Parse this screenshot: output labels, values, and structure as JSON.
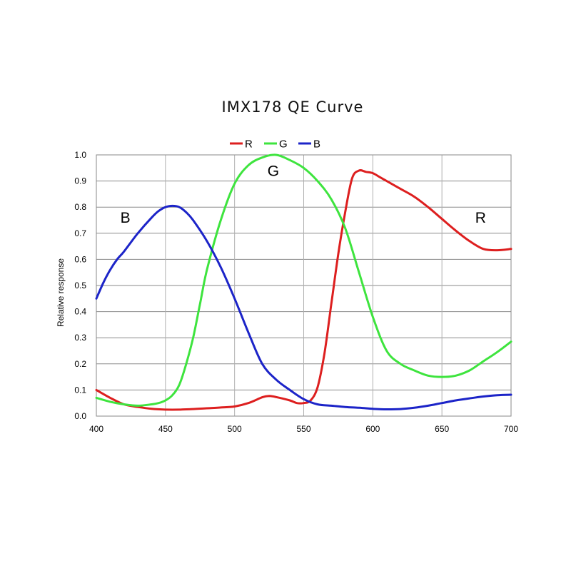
{
  "chart_data": {
    "type": "line",
    "title": "IMX178 QE Curve",
    "xlabel": "",
    "ylabel": "Relative response",
    "xlim": [
      400,
      700
    ],
    "ylim": [
      0.0,
      1.0
    ],
    "xticks": [
      "400",
      "450",
      "500",
      "550",
      "600",
      "650",
      "700"
    ],
    "yticks": [
      "0.0",
      "0.1",
      "0.2",
      "0.3",
      "0.4",
      "0.5",
      "0.6",
      "0.7",
      "0.8",
      "0.9",
      "1.0"
    ],
    "grid": true,
    "legend": "top",
    "series": [
      {
        "name": "R",
        "color": "#dd1f1f",
        "x": [
          400,
          410,
          420,
          430,
          440,
          450,
          460,
          470,
          480,
          490,
          500,
          510,
          520,
          525,
          530,
          540,
          545,
          550,
          555,
          560,
          565,
          570,
          575,
          580,
          585,
          590,
          595,
          600,
          605,
          610,
          620,
          630,
          640,
          650,
          660,
          670,
          680,
          690,
          700
        ],
        "y": [
          0.1,
          0.07,
          0.045,
          0.035,
          0.028,
          0.025,
          0.025,
          0.027,
          0.03,
          0.033,
          0.037,
          0.05,
          0.072,
          0.077,
          0.073,
          0.06,
          0.05,
          0.05,
          0.06,
          0.11,
          0.24,
          0.43,
          0.62,
          0.78,
          0.91,
          0.94,
          0.935,
          0.93,
          0.915,
          0.9,
          0.87,
          0.84,
          0.8,
          0.755,
          0.71,
          0.67,
          0.64,
          0.635,
          0.64
        ]
      },
      {
        "name": "G",
        "color": "#3ee43e",
        "x": [
          400,
          410,
          420,
          430,
          440,
          445,
          450,
          455,
          460,
          465,
          470,
          475,
          480,
          490,
          500,
          510,
          520,
          530,
          540,
          550,
          560,
          570,
          580,
          590,
          600,
          610,
          620,
          630,
          640,
          650,
          660,
          670,
          680,
          690,
          700
        ],
        "y": [
          0.07,
          0.055,
          0.045,
          0.04,
          0.045,
          0.05,
          0.06,
          0.08,
          0.12,
          0.2,
          0.3,
          0.43,
          0.56,
          0.75,
          0.89,
          0.96,
          0.99,
          1.0,
          0.98,
          0.95,
          0.9,
          0.83,
          0.72,
          0.55,
          0.38,
          0.25,
          0.2,
          0.175,
          0.155,
          0.15,
          0.155,
          0.175,
          0.21,
          0.245,
          0.285
        ]
      },
      {
        "name": "B",
        "color": "#1c24c8",
        "x": [
          400,
          405,
          410,
          415,
          420,
          430,
          440,
          445,
          450,
          455,
          460,
          465,
          470,
          480,
          490,
          500,
          510,
          520,
          530,
          540,
          550,
          560,
          570,
          580,
          590,
          600,
          610,
          620,
          630,
          640,
          650,
          660,
          670,
          680,
          690,
          700
        ],
        "y": [
          0.45,
          0.51,
          0.56,
          0.6,
          0.63,
          0.7,
          0.76,
          0.785,
          0.8,
          0.805,
          0.8,
          0.78,
          0.75,
          0.67,
          0.57,
          0.45,
          0.32,
          0.2,
          0.14,
          0.1,
          0.065,
          0.045,
          0.04,
          0.035,
          0.032,
          0.028,
          0.026,
          0.027,
          0.032,
          0.04,
          0.05,
          0.06,
          0.068,
          0.075,
          0.08,
          0.082
        ]
      }
    ],
    "annotations": [
      {
        "text": "B",
        "x": 421,
        "y": 0.74
      },
      {
        "text": "G",
        "x": 528,
        "y": 0.92
      },
      {
        "text": "R",
        "x": 678,
        "y": 0.74
      }
    ]
  }
}
